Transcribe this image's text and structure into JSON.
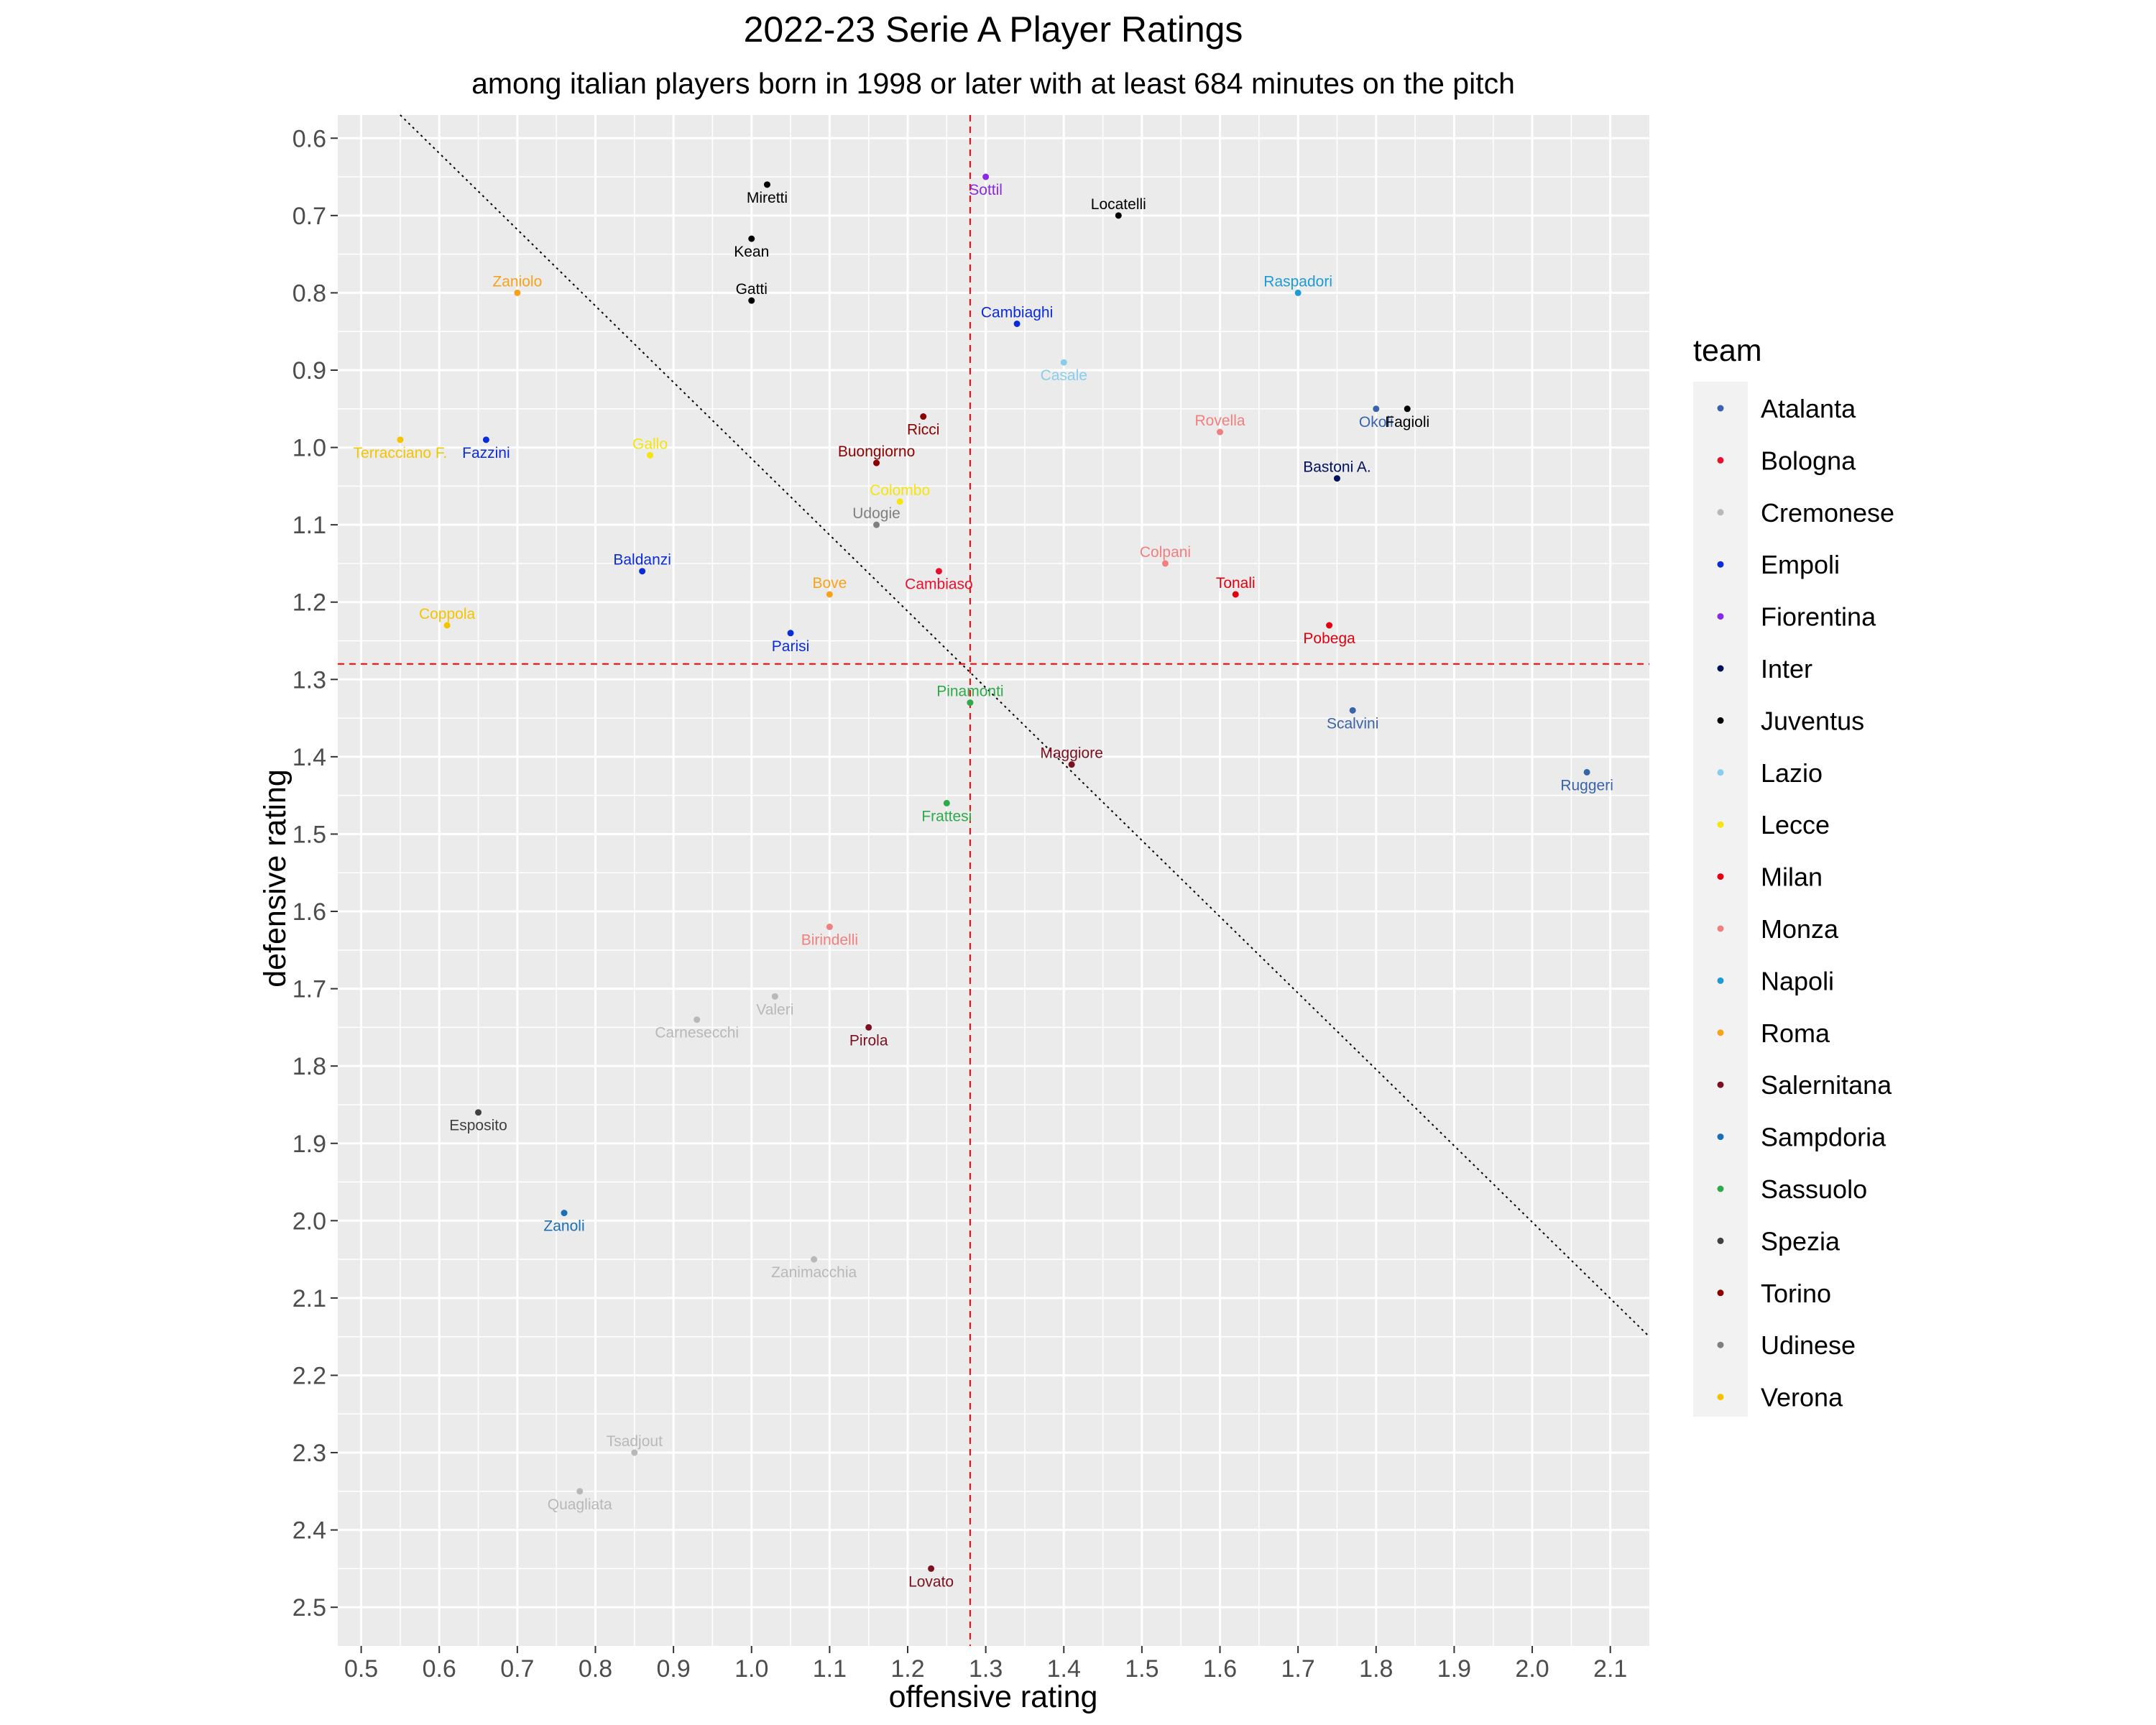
{
  "chart_data": {
    "type": "scatter",
    "title": "2022-23 Serie A Player Ratings",
    "subtitle": "among italian players born in 1998 or later with at least 684 minutes on the pitch",
    "xlabel": "offensive rating",
    "ylabel": "defensive rating",
    "xlim": [
      0.47,
      2.15
    ],
    "ylim": [
      0.57,
      2.55
    ],
    "y_reversed": true,
    "grid": true,
    "x_ticks": [
      "0.5",
      "0.6",
      "0.7",
      "0.8",
      "0.9",
      "1.0",
      "1.1",
      "1.2",
      "1.3",
      "1.4",
      "1.5",
      "1.6",
      "1.7",
      "1.8",
      "1.9",
      "2.0",
      "2.1"
    ],
    "y_ticks": [
      "0.6",
      "0.7",
      "0.8",
      "0.9",
      "1.0",
      "1.1",
      "1.2",
      "1.3",
      "1.4",
      "1.5",
      "1.6",
      "1.7",
      "1.8",
      "1.9",
      "2.0",
      "2.1",
      "2.2",
      "2.3",
      "2.4",
      "2.5"
    ],
    "reference_lines": {
      "vertical_x": 1.28,
      "horizontal_y": 1.28,
      "diagonal": [
        [
          0.55,
          0.57
        ],
        [
          2.15,
          2.15
        ]
      ]
    },
    "legend": {
      "title": "team",
      "position": "right",
      "entries": [
        {
          "team": "Atalanta",
          "color": "#3a64a8"
        },
        {
          "team": "Bologna",
          "color": "#e8112d"
        },
        {
          "team": "Cremonese",
          "color": "#b8b8b8"
        },
        {
          "team": "Empoli",
          "color": "#0a2bd6"
        },
        {
          "team": "Fiorentina",
          "color": "#8a2be2"
        },
        {
          "team": "Inter",
          "color": "#00105a"
        },
        {
          "team": "Juventus",
          "color": "#000000"
        },
        {
          "team": "Lazio",
          "color": "#87ceeb"
        },
        {
          "team": "Lecce",
          "color": "#f5e50a"
        },
        {
          "team": "Milan",
          "color": "#e00010"
        },
        {
          "team": "Monza",
          "color": "#f08080"
        },
        {
          "team": "Napoli",
          "color": "#1e9bd7"
        },
        {
          "team": "Roma",
          "color": "#f7a21b"
        },
        {
          "team": "Salernitana",
          "color": "#7a1020"
        },
        {
          "team": "Sampdoria",
          "color": "#1b6fb5"
        },
        {
          "team": "Sassuolo",
          "color": "#2eaa4a"
        },
        {
          "team": "Spezia",
          "color": "#404040"
        },
        {
          "team": "Torino",
          "color": "#8b0000"
        },
        {
          "team": "Udinese",
          "color": "#7f7f7f"
        },
        {
          "team": "Verona",
          "color": "#f5c400"
        }
      ]
    },
    "points": [
      {
        "name": "Miretti",
        "team": "Juventus",
        "x": 1.02,
        "y": 0.66,
        "lp": "below"
      },
      {
        "name": "Sottil",
        "team": "Fiorentina",
        "x": 1.3,
        "y": 0.65,
        "lp": "below"
      },
      {
        "name": "Locatelli",
        "team": "Juventus",
        "x": 1.47,
        "y": 0.7,
        "lp": "above"
      },
      {
        "name": "Kean",
        "team": "Juventus",
        "x": 1.0,
        "y": 0.73,
        "lp": "below"
      },
      {
        "name": "Zaniolo",
        "team": "Roma",
        "x": 0.7,
        "y": 0.8,
        "lp": "above"
      },
      {
        "name": "Gatti",
        "team": "Juventus",
        "x": 1.0,
        "y": 0.81,
        "lp": "above"
      },
      {
        "name": "Raspadori",
        "team": "Napoli",
        "x": 1.7,
        "y": 0.8,
        "lp": "above"
      },
      {
        "name": "Cambiaghi",
        "team": "Empoli",
        "x": 1.34,
        "y": 0.84,
        "lp": "above"
      },
      {
        "name": "Casale",
        "team": "Lazio",
        "x": 1.4,
        "y": 0.89,
        "lp": "below"
      },
      {
        "name": "Okoli",
        "team": "Atalanta",
        "x": 1.8,
        "y": 0.95,
        "lp": "below"
      },
      {
        "name": "Fagioli",
        "team": "Juventus",
        "x": 1.84,
        "y": 0.95,
        "lp": "below"
      },
      {
        "name": "Ricci",
        "team": "Torino",
        "x": 1.22,
        "y": 0.96,
        "lp": "below"
      },
      {
        "name": "Rovella",
        "team": "Monza",
        "x": 1.6,
        "y": 0.98,
        "lp": "above"
      },
      {
        "name": "Terracciano F.",
        "team": "Verona",
        "x": 0.55,
        "y": 0.99,
        "lp": "below"
      },
      {
        "name": "Fazzini",
        "team": "Empoli",
        "x": 0.66,
        "y": 0.99,
        "lp": "below"
      },
      {
        "name": "Gallo",
        "team": "Lecce",
        "x": 0.87,
        "y": 1.01,
        "lp": "above"
      },
      {
        "name": "Buongiorno",
        "team": "Torino",
        "x": 1.16,
        "y": 1.02,
        "lp": "above"
      },
      {
        "name": "Bastoni A.",
        "team": "Inter",
        "x": 1.75,
        "y": 1.04,
        "lp": "above"
      },
      {
        "name": "Colombo",
        "team": "Lecce",
        "x": 1.19,
        "y": 1.07,
        "lp": "above"
      },
      {
        "name": "Udogie",
        "team": "Udinese",
        "x": 1.16,
        "y": 1.1,
        "lp": "above"
      },
      {
        "name": "Baldanzi",
        "team": "Empoli",
        "x": 0.86,
        "y": 1.16,
        "lp": "above"
      },
      {
        "name": "Colpani",
        "team": "Monza",
        "x": 1.53,
        "y": 1.15,
        "lp": "above"
      },
      {
        "name": "Cambiaso",
        "team": "Bologna",
        "x": 1.24,
        "y": 1.16,
        "lp": "below"
      },
      {
        "name": "Bove",
        "team": "Roma",
        "x": 1.1,
        "y": 1.19,
        "lp": "above"
      },
      {
        "name": "Tonali",
        "team": "Milan",
        "x": 1.62,
        "y": 1.19,
        "lp": "above"
      },
      {
        "name": "Coppola",
        "team": "Verona",
        "x": 0.61,
        "y": 1.23,
        "lp": "above"
      },
      {
        "name": "Pobega",
        "team": "Milan",
        "x": 1.74,
        "y": 1.23,
        "lp": "below"
      },
      {
        "name": "Parisi",
        "team": "Empoli",
        "x": 1.05,
        "y": 1.24,
        "lp": "below"
      },
      {
        "name": "Pinamonti",
        "team": "Sassuolo",
        "x": 1.28,
        "y": 1.33,
        "lp": "above"
      },
      {
        "name": "Scalvini",
        "team": "Atalanta",
        "x": 1.77,
        "y": 1.34,
        "lp": "below"
      },
      {
        "name": "Maggiore",
        "team": "Salernitana",
        "x": 1.41,
        "y": 1.41,
        "lp": "above"
      },
      {
        "name": "Ruggeri",
        "team": "Atalanta",
        "x": 2.07,
        "y": 1.42,
        "lp": "below"
      },
      {
        "name": "Frattesi",
        "team": "Sassuolo",
        "x": 1.25,
        "y": 1.46,
        "lp": "below"
      },
      {
        "name": "Birindelli",
        "team": "Monza",
        "x": 1.1,
        "y": 1.62,
        "lp": "below"
      },
      {
        "name": "Valeri",
        "team": "Cremonese",
        "x": 1.03,
        "y": 1.71,
        "lp": "below"
      },
      {
        "name": "Carnesecchi",
        "team": "Cremonese",
        "x": 0.93,
        "y": 1.74,
        "lp": "below"
      },
      {
        "name": "Pirola",
        "team": "Salernitana",
        "x": 1.15,
        "y": 1.75,
        "lp": "below"
      },
      {
        "name": "Esposito",
        "team": "Spezia",
        "x": 0.65,
        "y": 1.86,
        "lp": "below"
      },
      {
        "name": "Zanoli",
        "team": "Sampdoria",
        "x": 0.76,
        "y": 1.99,
        "lp": "below"
      },
      {
        "name": "Zanimacchia",
        "team": "Cremonese",
        "x": 1.08,
        "y": 2.05,
        "lp": "below"
      },
      {
        "name": "Tsadjout",
        "team": "Cremonese",
        "x": 0.85,
        "y": 2.3,
        "lp": "above"
      },
      {
        "name": "Quagliata",
        "team": "Cremonese",
        "x": 0.78,
        "y": 2.35,
        "lp": "below"
      },
      {
        "name": "Lovato",
        "team": "Salernitana",
        "x": 1.23,
        "y": 2.45,
        "lp": "below"
      }
    ]
  }
}
